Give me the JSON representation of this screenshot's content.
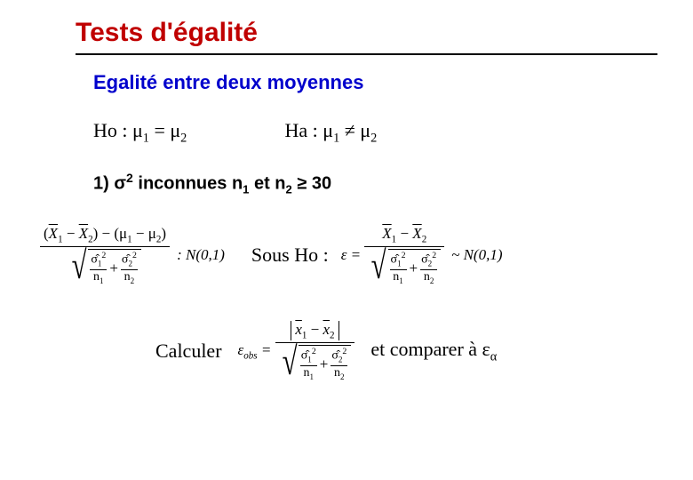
{
  "colors": {
    "title": "#c00000",
    "subtitle": "#0000cc",
    "text": "#000000",
    "background": "#ffffff",
    "rule": "#000000"
  },
  "title": "Tests d'égalité",
  "subtitle": "Egalité entre deux moyennes",
  "hypotheses": {
    "ho_label": "Ho : ",
    "ho_expr": "μ₁ = μ₂",
    "ha_label": "Ha : ",
    "ha_expr": "μ₁ ≠ μ₂"
  },
  "case1": {
    "prefix": "1) σ",
    "exp": "2",
    "mid": " inconnues n",
    "sub1": "1",
    "mid2": " et n",
    "sub2": "2",
    "tail": " ≥ 30"
  },
  "formula1": {
    "numerator": "(X̄₁ − X̄₂) − (μ₁ − μ₂)",
    "sqrt_sum_terms": [
      {
        "top": "σ̂₁²",
        "bottom": "n₁"
      },
      {
        "top": "σ̂₂²",
        "bottom": "n₂"
      }
    ],
    "dist": ": N(0,1)"
  },
  "sous_ho_label": "Sous Ho :",
  "formula2": {
    "lhs": "ε = ",
    "numerator": "X̄₁ − X̄₂",
    "sqrt_sum_terms": [
      {
        "top": "σ̂₁²",
        "bottom": "n₁"
      },
      {
        "top": "σ̂₂²",
        "bottom": "n₂"
      }
    ],
    "dist": "~ N(0,1)"
  },
  "calculer_label": "Calculer",
  "formula3": {
    "lhs": "ε",
    "lhs_sub": "obs",
    "eq": " = ",
    "numerator_abs": "x̄₁ − x̄₂",
    "sqrt_sum_terms": [
      {
        "top": "σ̂₁²",
        "bottom": "n₁"
      },
      {
        "top": "σ̂₂²",
        "bottom": "n₂"
      }
    ]
  },
  "compare_prefix": "et comparer à ε",
  "compare_sub": "α",
  "typography": {
    "title_fontsize": 30,
    "subtitle_fontsize": 22,
    "body_fontsize": 22,
    "formula_fontsize": 17,
    "title_font": "Arial",
    "body_font": "Times New Roman"
  }
}
